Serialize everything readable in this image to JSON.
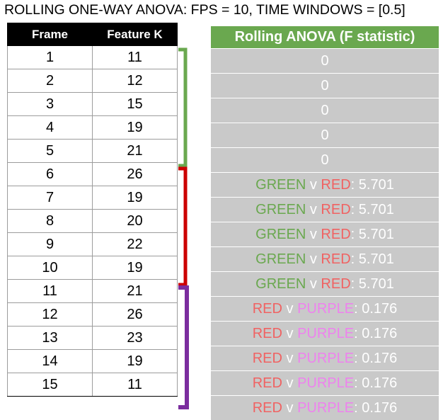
{
  "title": "ROLLING ONE-WAY ANOVA: FPS = 10, TIME WINDOWS = [0.5]",
  "frame_table": {
    "headers": [
      "Frame",
      "Feature K"
    ],
    "rows": [
      [
        "1",
        "11"
      ],
      [
        "2",
        "12"
      ],
      [
        "3",
        "15"
      ],
      [
        "4",
        "19"
      ],
      [
        "5",
        "21"
      ],
      [
        "6",
        "26"
      ],
      [
        "7",
        "19"
      ],
      [
        "8",
        "20"
      ],
      [
        "9",
        "22"
      ],
      [
        "10",
        "19"
      ],
      [
        "11",
        "21"
      ],
      [
        "12",
        "26"
      ],
      [
        "13",
        "23"
      ],
      [
        "14",
        "19"
      ],
      [
        "15",
        "11"
      ]
    ]
  },
  "anova_table": {
    "header": "Rolling ANOVA (F statistic)",
    "rows": [
      {
        "value": "0"
      },
      {
        "value": "0"
      },
      {
        "value": "0"
      },
      {
        "value": "0"
      },
      {
        "value": "0"
      },
      {
        "a": "GREEN",
        "sep": " v ",
        "b": "RED",
        "colon": ": ",
        "value": "5.701"
      },
      {
        "a": "GREEN",
        "sep": " v ",
        "b": "RED",
        "colon": ": ",
        "value": "5.701"
      },
      {
        "a": "GREEN",
        "sep": " v ",
        "b": "RED",
        "colon": ": ",
        "value": "5.701"
      },
      {
        "a": "GREEN",
        "sep": " v ",
        "b": "RED",
        "colon": ": ",
        "value": "5.701"
      },
      {
        "a": "GREEN",
        "sep": " v ",
        "b": "RED",
        "colon": ": ",
        "value": "5.701"
      },
      {
        "a": "RED",
        "sep": " v ",
        "b": "PURPLE",
        "colon": ": ",
        "value": "0.176"
      },
      {
        "a": "RED",
        "sep": " v ",
        "b": "PURPLE",
        "colon": ": ",
        "value": "0.176"
      },
      {
        "a": "RED",
        "sep": " v ",
        "b": "PURPLE",
        "colon": ": ",
        "value": "0.176"
      },
      {
        "a": "RED",
        "sep": " v ",
        "b": "PURPLE",
        "colon": ": ",
        "value": "0.176"
      },
      {
        "a": "RED",
        "sep": " v ",
        "b": "PURPLE",
        "colon": ": ",
        "value": "0.176"
      }
    ]
  },
  "colors": {
    "green": "#6aa84f",
    "red": "#cc0000",
    "purple": "#7b2d9e",
    "label_red": "#f06262",
    "label_purple": "#ee82ee",
    "cell_gray": "#c9c9c9"
  }
}
